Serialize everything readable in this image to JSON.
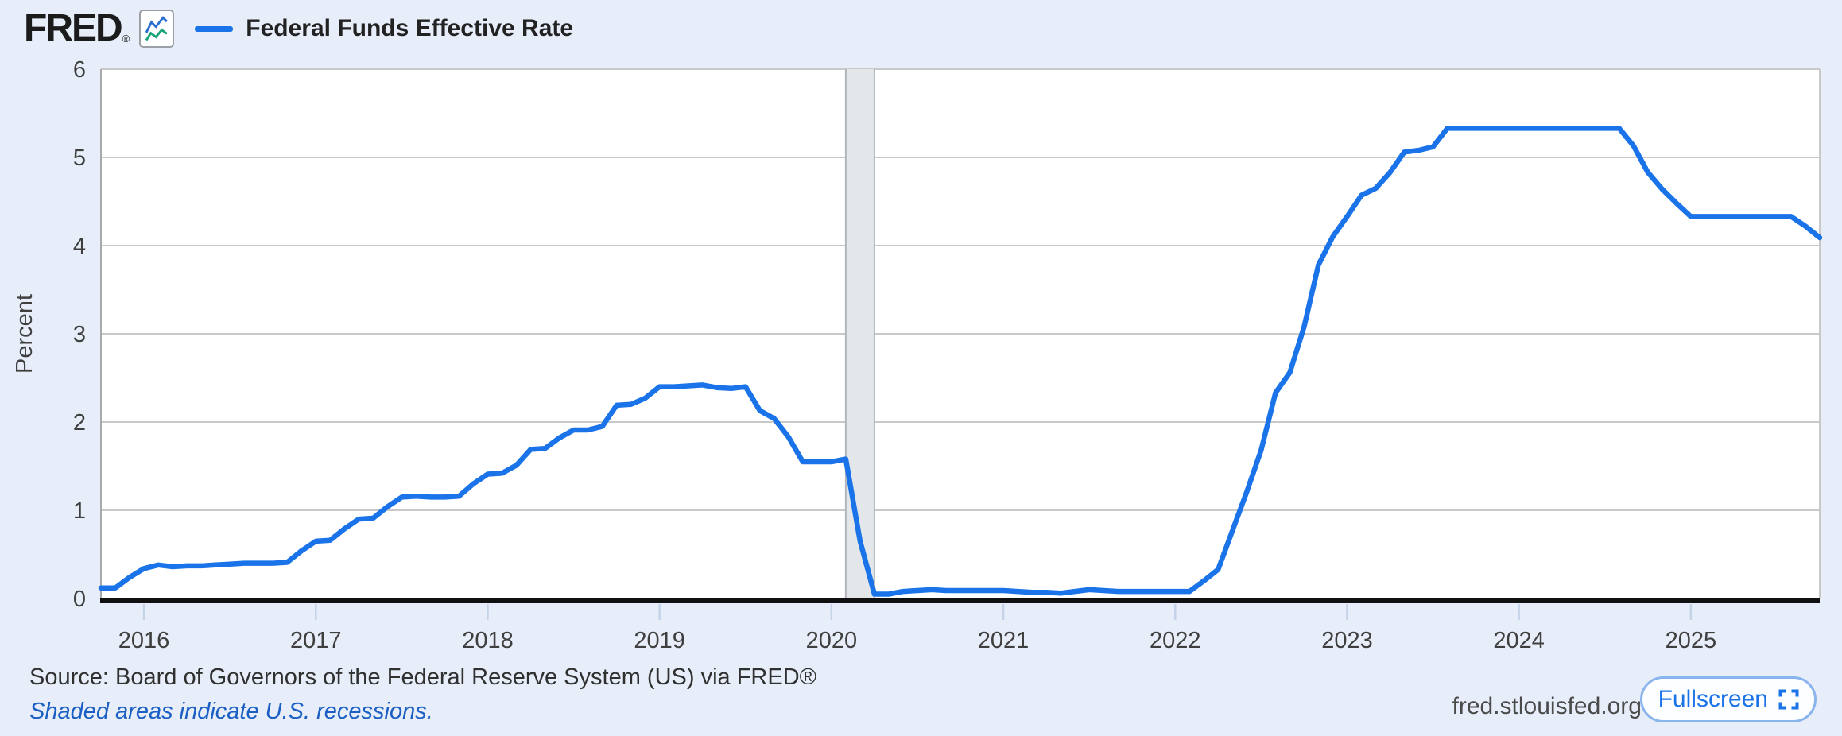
{
  "header": {
    "logo_text": "FRED",
    "logo_registered_mark": "®",
    "legend_label": "Federal Funds Effective Rate"
  },
  "footer": {
    "source_text": "Source: Board of Governors of the Federal Reserve System (US) via FRED®",
    "recession_note": "Shaded areas indicate U.S. recessions.",
    "watermark": "fred.stlouisfed.org",
    "fullscreen_button_label": "Fullscreen"
  },
  "colors": {
    "page_background": "#e7eef9",
    "plot_background": "#ffffff",
    "accent": "#1a73e8",
    "gridline": "#c9c9c9",
    "plot_left_border": "#a9a9a9",
    "axis": "#111111",
    "axis_label": "#3f3f3f",
    "tick": "#c5d3e8",
    "recession_band": "#e3e7ea",
    "recession_band_edge": "#b3b6b9",
    "link": "#1b5fc4",
    "logo_icon_blue": "#2b6fce",
    "logo_icon_teal": "#16a379"
  },
  "chart_data": {
    "type": "line",
    "title": "Federal Funds Effective Rate",
    "ylabel": "Percent",
    "ylim": [
      0,
      6
    ],
    "yticks": [
      0,
      1,
      2,
      3,
      4,
      5,
      6
    ],
    "grid": true,
    "legend_position": "top-left",
    "frequency": "monthly",
    "x_start": "2015-10",
    "x_end": "2025-10",
    "x_tick_labels": [
      "2016",
      "2017",
      "2018",
      "2019",
      "2020",
      "2021",
      "2022",
      "2023",
      "2024",
      "2025"
    ],
    "recessions": [
      {
        "start": "2020-02",
        "end": "2020-04"
      }
    ],
    "series": [
      {
        "name": "Federal Funds Effective Rate",
        "color": "#1a73e8",
        "values": [
          0.12,
          0.12,
          0.24,
          0.34,
          0.38,
          0.36,
          0.37,
          0.37,
          0.38,
          0.39,
          0.4,
          0.4,
          0.4,
          0.41,
          0.54,
          0.65,
          0.66,
          0.79,
          0.9,
          0.91,
          1.04,
          1.15,
          1.16,
          1.15,
          1.15,
          1.16,
          1.3,
          1.41,
          1.42,
          1.51,
          1.69,
          1.7,
          1.82,
          1.91,
          1.91,
          1.95,
          2.19,
          2.2,
          2.27,
          2.4,
          2.4,
          2.41,
          2.42,
          2.39,
          2.38,
          2.4,
          2.13,
          2.04,
          1.83,
          1.55,
          1.55,
          1.55,
          1.58,
          0.65,
          0.05,
          0.05,
          0.08,
          0.09,
          0.1,
          0.09,
          0.09,
          0.09,
          0.09,
          0.09,
          0.08,
          0.07,
          0.07,
          0.06,
          0.08,
          0.1,
          0.09,
          0.08,
          0.08,
          0.08,
          0.08,
          0.08,
          0.08,
          0.2,
          0.33,
          0.77,
          1.21,
          1.68,
          2.33,
          2.56,
          3.08,
          3.78,
          4.1,
          4.33,
          4.57,
          4.65,
          4.83,
          5.06,
          5.08,
          5.12,
          5.33,
          5.33,
          5.33,
          5.33,
          5.33,
          5.33,
          5.33,
          5.33,
          5.33,
          5.33,
          5.33,
          5.33,
          5.33,
          5.13,
          4.83,
          4.64,
          4.48,
          4.33,
          4.33,
          4.33,
          4.33,
          4.33,
          4.33,
          4.33,
          4.33,
          4.22,
          4.09
        ]
      }
    ]
  }
}
